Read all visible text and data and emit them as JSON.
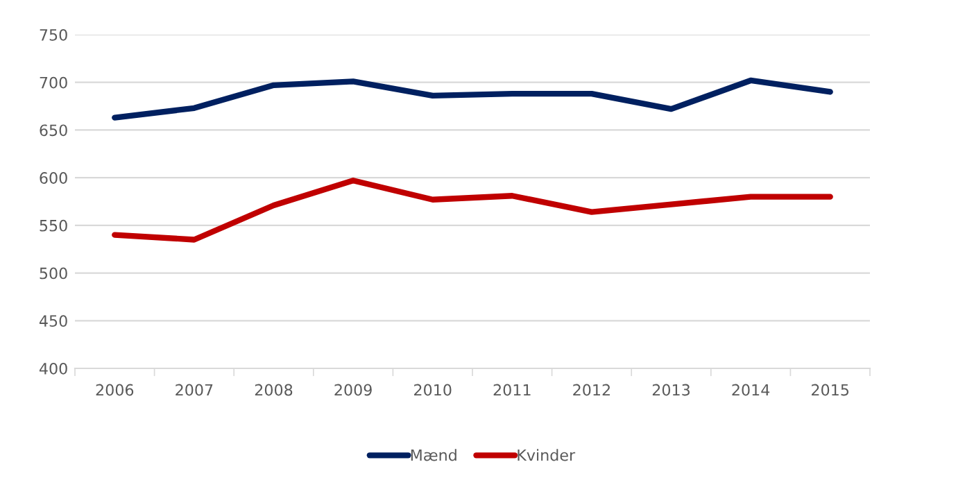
{
  "chart_data": {
    "type": "line",
    "categories": [
      "2006",
      "2007",
      "2008",
      "2009",
      "2010",
      "2011",
      "2012",
      "2013",
      "2014",
      "2015"
    ],
    "series": [
      {
        "name": "Mænd",
        "color": "#002060",
        "values": [
          663,
          673,
          697,
          701,
          686,
          688,
          688,
          672,
          702,
          690
        ]
      },
      {
        "name": "Kvinder",
        "color": "#c00000",
        "values": [
          540,
          535,
          571,
          597,
          577,
          581,
          564,
          572,
          580,
          580
        ]
      }
    ],
    "ylim": [
      400,
      750
    ],
    "yticks": [
      400,
      450,
      500,
      550,
      600,
      650,
      700,
      750
    ],
    "grid": "y",
    "legend": "bottom",
    "marker": "none",
    "line_style": "solid"
  }
}
